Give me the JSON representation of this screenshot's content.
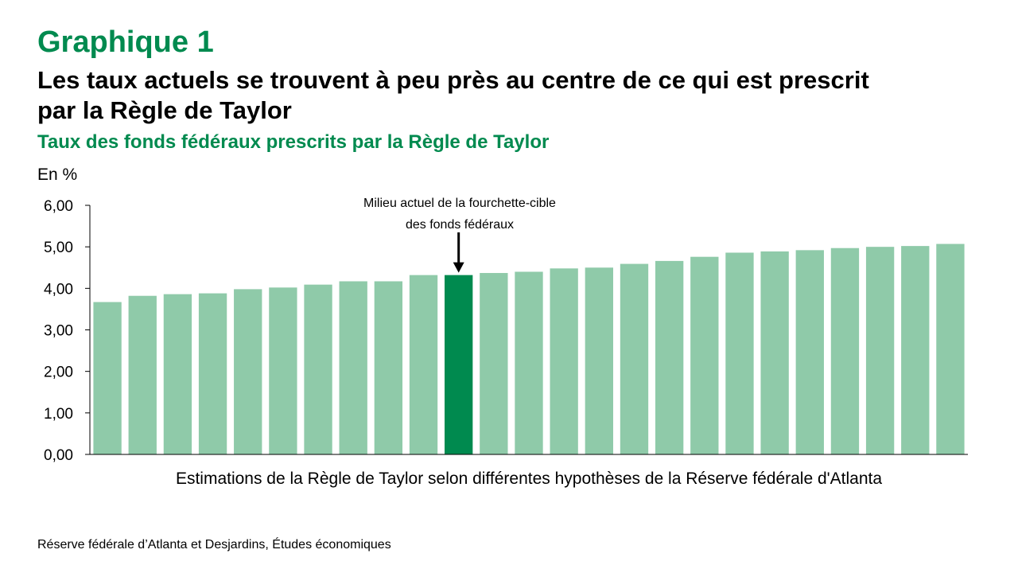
{
  "header": {
    "label": "Graphique 1",
    "title_line1": "Les taux actuels se trouvent à peu près au centre de ce qui est prescrit",
    "title_line2": "par la Règle de Taylor",
    "subtitle": "Taux des fonds fédéraux prescrits par la Règle de Taylor"
  },
  "colors": {
    "accent": "#008A4F",
    "bar": "#8FCAA9",
    "bar_highlight": "#008A4F"
  },
  "chart_data": {
    "type": "bar",
    "ylabel": "En %",
    "xlabel": "Estimations de la Règle de Taylor selon différentes hypothèses de la Réserve fédérale d'Atlanta",
    "ylim": [
      0,
      6
    ],
    "yticks": [
      "0,00",
      "1,00",
      "2,00",
      "3,00",
      "4,00",
      "5,00",
      "6,00"
    ],
    "values": [
      3.67,
      3.82,
      3.86,
      3.88,
      3.98,
      4.02,
      4.09,
      4.17,
      4.17,
      4.32,
      4.32,
      4.37,
      4.4,
      4.48,
      4.5,
      4.59,
      4.66,
      4.76,
      4.86,
      4.89,
      4.92,
      4.97,
      5.0,
      5.02,
      5.07
    ],
    "highlight_index": 10,
    "annotation": {
      "line1": "Milieu actuel de la fourchette-cible",
      "line2": "des fonds fédéraux"
    }
  },
  "footer": {
    "source": "Réserve fédérale d’Atlanta et Desjardins, Études économiques"
  }
}
